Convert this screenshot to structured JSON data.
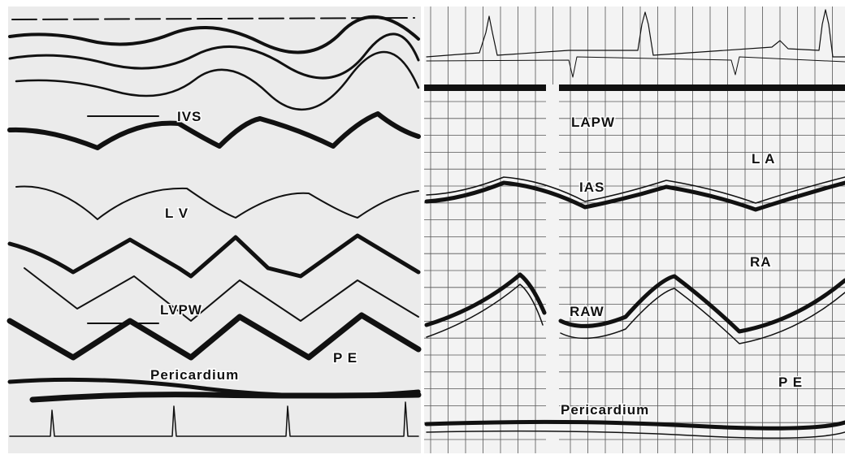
{
  "left_panel": {
    "labels": [
      "IVS",
      "L V",
      "LVPW",
      "P E",
      "Pericardium"
    ]
  },
  "right_panel": {
    "labels": [
      "LAPW",
      "L A",
      "IAS",
      "RA",
      "RAW",
      "P E",
      "Pericardium"
    ]
  }
}
